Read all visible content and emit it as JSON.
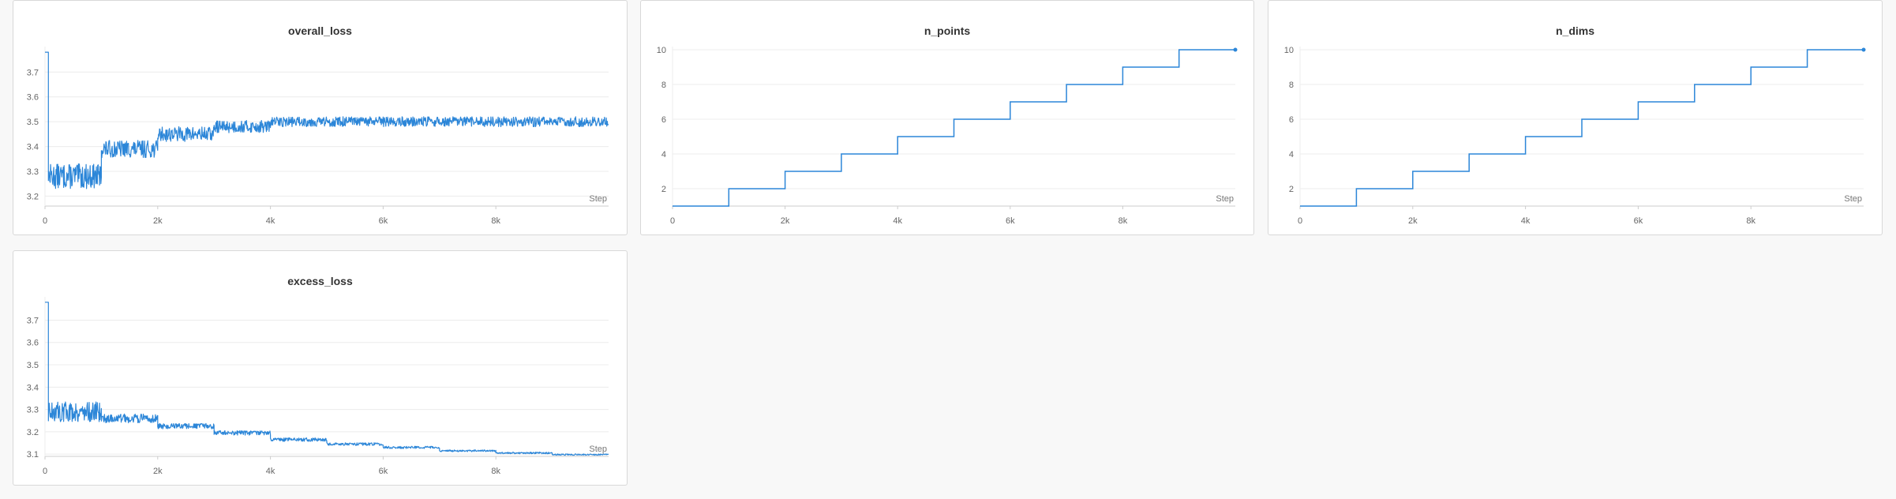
{
  "colors": {
    "line": "#2c86d8",
    "grid": "#ececec",
    "axis": "#cccccc",
    "text": "#666666"
  },
  "chart_data": [
    {
      "id": "overall_loss",
      "type": "line",
      "title": "overall_loss",
      "xlabel": "Step",
      "xlim": [
        0,
        10000
      ],
      "ylim": [
        3.16,
        3.79
      ],
      "xticks": [
        0,
        2000,
        4000,
        6000,
        8000
      ],
      "xtick_labels": [
        "0",
        "2k",
        "4k",
        "6k",
        "8k"
      ],
      "yticks": [
        3.2,
        3.3,
        3.4,
        3.5,
        3.6,
        3.7
      ],
      "ytick_labels": [
        "3.2",
        "3.3",
        "3.4",
        "3.5",
        "3.6",
        "3.7"
      ],
      "grid": true,
      "series": [
        {
          "color": "#2c86d8",
          "segments": [
            {
              "x_start": 0,
              "x_end": 60,
              "value": 3.78,
              "noise": 0.0
            },
            {
              "x_start": 60,
              "x_end": 1000,
              "value": 3.28,
              "noise": 0.05
            },
            {
              "x_start": 1000,
              "x_end": 2000,
              "value": 3.39,
              "noise": 0.035
            },
            {
              "x_start": 2000,
              "x_end": 3000,
              "value": 3.45,
              "noise": 0.03
            },
            {
              "x_start": 3000,
              "x_end": 4000,
              "value": 3.48,
              "noise": 0.025
            },
            {
              "x_start": 4000,
              "x_end": 10000,
              "value": 3.5,
              "noise": 0.02
            }
          ]
        }
      ]
    },
    {
      "id": "n_points",
      "type": "line",
      "title": "n_points",
      "xlabel": "Step",
      "xlim": [
        0,
        10000
      ],
      "ylim": [
        1,
        10
      ],
      "xticks": [
        0,
        2000,
        4000,
        6000,
        8000
      ],
      "xtick_labels": [
        "0",
        "2k",
        "4k",
        "6k",
        "8k"
      ],
      "yticks": [
        2,
        4,
        6,
        8,
        10
      ],
      "ytick_labels": [
        "2",
        "4",
        "6",
        "8",
        "10"
      ],
      "grid": true,
      "series": [
        {
          "color": "#2c86d8",
          "step_x": [
            0,
            1000,
            2000,
            3000,
            4000,
            5000,
            6000,
            7000,
            8000,
            9000,
            10000
          ],
          "step_y": [
            1,
            2,
            3,
            4,
            5,
            6,
            7,
            8,
            9,
            10,
            10
          ]
        }
      ]
    },
    {
      "id": "n_dims",
      "type": "line",
      "title": "n_dims",
      "xlabel": "Step",
      "xlim": [
        0,
        10000
      ],
      "ylim": [
        1,
        10
      ],
      "xticks": [
        0,
        2000,
        4000,
        6000,
        8000
      ],
      "xtick_labels": [
        "0",
        "2k",
        "4k",
        "6k",
        "8k"
      ],
      "yticks": [
        2,
        4,
        6,
        8,
        10
      ],
      "ytick_labels": [
        "2",
        "4",
        "6",
        "8",
        "10"
      ],
      "grid": true,
      "series": [
        {
          "color": "#2c86d8",
          "step_x": [
            0,
            1000,
            2000,
            3000,
            4000,
            5000,
            6000,
            7000,
            8000,
            9000,
            10000
          ],
          "step_y": [
            1,
            2,
            3,
            4,
            5,
            6,
            7,
            8,
            9,
            10,
            10
          ]
        }
      ]
    },
    {
      "id": "excess_loss",
      "type": "line",
      "title": "excess_loss",
      "xlabel": "Step",
      "xlim": [
        0,
        10000
      ],
      "ylim": [
        3.09,
        3.79
      ],
      "xticks": [
        0,
        2000,
        4000,
        6000,
        8000
      ],
      "xtick_labels": [
        "0",
        "2k",
        "4k",
        "6k",
        "8k"
      ],
      "yticks": [
        3.1,
        3.2,
        3.3,
        3.4,
        3.5,
        3.6,
        3.7
      ],
      "ytick_labels": [
        "3.1",
        "3.2",
        "3.3",
        "3.4",
        "3.5",
        "3.6",
        "3.7"
      ],
      "grid": true,
      "series": [
        {
          "color": "#2c86d8",
          "segments": [
            {
              "x_start": 0,
              "x_end": 60,
              "value": 3.78,
              "noise": 0.0
            },
            {
              "x_start": 60,
              "x_end": 1000,
              "value": 3.29,
              "noise": 0.045
            },
            {
              "x_start": 1000,
              "x_end": 2000,
              "value": 3.26,
              "noise": 0.02
            },
            {
              "x_start": 2000,
              "x_end": 3000,
              "value": 3.225,
              "noise": 0.012
            },
            {
              "x_start": 3000,
              "x_end": 4000,
              "value": 3.195,
              "noise": 0.01
            },
            {
              "x_start": 4000,
              "x_end": 5000,
              "value": 3.165,
              "noise": 0.008
            },
            {
              "x_start": 5000,
              "x_end": 6000,
              "value": 3.145,
              "noise": 0.006
            },
            {
              "x_start": 6000,
              "x_end": 7000,
              "value": 3.13,
              "noise": 0.005
            },
            {
              "x_start": 7000,
              "x_end": 8000,
              "value": 3.115,
              "noise": 0.004
            },
            {
              "x_start": 8000,
              "x_end": 9000,
              "value": 3.105,
              "noise": 0.004
            },
            {
              "x_start": 9000,
              "x_end": 10000,
              "value": 3.098,
              "noise": 0.003
            }
          ]
        }
      ]
    }
  ]
}
